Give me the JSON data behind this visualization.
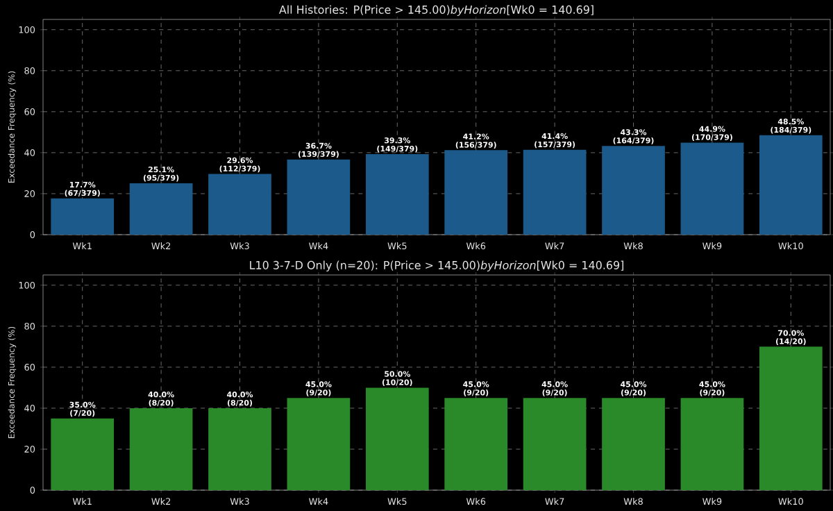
{
  "chart_data": [
    {
      "type": "bar",
      "title": "All Histories: P(Price > 145.00)*byHorizon*[Wk0 = 140.69]",
      "ylabel": "Exceedance Frequency (%)",
      "categories": [
        "Wk1",
        "Wk2",
        "Wk3",
        "Wk4",
        "Wk5",
        "Wk6",
        "Wk7",
        "Wk8",
        "Wk9",
        "Wk10"
      ],
      "values": [
        17.7,
        25.1,
        29.6,
        36.7,
        39.3,
        41.2,
        41.4,
        43.3,
        44.9,
        48.5
      ],
      "value_labels": [
        "17.7% (67/379)",
        "25.1% (95/379)",
        "29.6% (112/379)",
        "36.7% (139/379)",
        "39.3% (149/379)",
        "41.2% (156/379)",
        "41.4% (157/379)",
        "43.3% (164/379)",
        "44.9% (170/379)",
        "48.5% (184/379)"
      ],
      "color": "#1b5a8a",
      "ylim": [
        0,
        105
      ],
      "yticks": [
        0,
        20,
        40,
        60,
        80,
        100
      ],
      "grid": true
    },
    {
      "type": "bar",
      "title": "L10 3-7-D Only (n=20): P(Price > 145.00)*byHorizon*[Wk0 = 140.69]",
      "ylabel": "Exceedance Frequency (%)",
      "categories": [
        "Wk1",
        "Wk2",
        "Wk3",
        "Wk4",
        "Wk5",
        "Wk6",
        "Wk7",
        "Wk8",
        "Wk9",
        "Wk10"
      ],
      "values": [
        35.0,
        40.0,
        40.0,
        45.0,
        50.0,
        45.0,
        45.0,
        45.0,
        45.0,
        70.0
      ],
      "value_labels": [
        "35.0% (7/20)",
        "40.0% (8/20)",
        "40.0% (8/20)",
        "45.0% (9/20)",
        "50.0% (10/20)",
        "45.0% (9/20)",
        "45.0% (9/20)",
        "45.0% (9/20)",
        "45.0% (9/20)",
        "70.0% (14/20)"
      ],
      "color": "#2a8a2a",
      "ylim": [
        0,
        105
      ],
      "yticks": [
        0,
        20,
        40,
        60,
        80,
        100
      ],
      "grid": true
    }
  ]
}
